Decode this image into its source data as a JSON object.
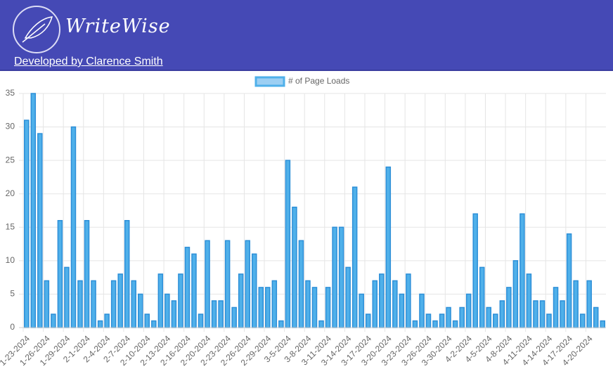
{
  "header": {
    "title": "WriteWise",
    "link": "Developed by Clarence Smith"
  },
  "chart_data": {
    "type": "bar",
    "categories": [
      "1-23-2024",
      null,
      null,
      "1-26-2024",
      null,
      null,
      "1-29-2024",
      null,
      null,
      "2-1-2024",
      null,
      null,
      "2-4-2024",
      null,
      null,
      "2-7-2024",
      null,
      null,
      "2-10-2024",
      null,
      null,
      "2-13-2024",
      null,
      null,
      "2-16-2024",
      null,
      null,
      "2-20-2024",
      null,
      null,
      "2-23-2024",
      null,
      null,
      "2-26-2024",
      null,
      null,
      "2-29-2024",
      null,
      null,
      "3-5-2024",
      null,
      null,
      "3-8-2024",
      null,
      null,
      "3-11-2024",
      null,
      null,
      "3-14-2024",
      null,
      null,
      "3-17-2024",
      null,
      null,
      "3-20-2024",
      null,
      null,
      "3-23-2024",
      null,
      null,
      "3-26-2024",
      null,
      null,
      "3-30-2024",
      null,
      null,
      "4-2-2024",
      null,
      null,
      "4-5-2024",
      null,
      null,
      "4-8-2024",
      null,
      null,
      "4-11-2024",
      null,
      null,
      "4-14-2024",
      null,
      null,
      "4-17-2024",
      null,
      null,
      "4-20-2024",
      null,
      null
    ],
    "series": [
      {
        "name": "# of Page Loads",
        "color": "#4fb0ea",
        "values": [
          31,
          35,
          29,
          7,
          2,
          16,
          9,
          30,
          7,
          16,
          7,
          1,
          2,
          7,
          8,
          16,
          7,
          5,
          2,
          1,
          8,
          5,
          4,
          8,
          12,
          11,
          2,
          13,
          4,
          4,
          13,
          3,
          8,
          13,
          11,
          6,
          6,
          7,
          1,
          25,
          18,
          13,
          7,
          6,
          1,
          6,
          15,
          15,
          9,
          21,
          5,
          2,
          7,
          8,
          24,
          7,
          5,
          8,
          1,
          5,
          2,
          1,
          2,
          3,
          1,
          3,
          5,
          17,
          9,
          3,
          2,
          4,
          6,
          10,
          17,
          8,
          4,
          4,
          2,
          6,
          4,
          14,
          7,
          2,
          7,
          3,
          1
        ]
      }
    ],
    "ylim": [
      0,
      35
    ],
    "yticks": [
      0,
      5,
      10,
      15,
      20,
      25,
      30,
      35
    ],
    "grid": true,
    "legend": "top"
  }
}
